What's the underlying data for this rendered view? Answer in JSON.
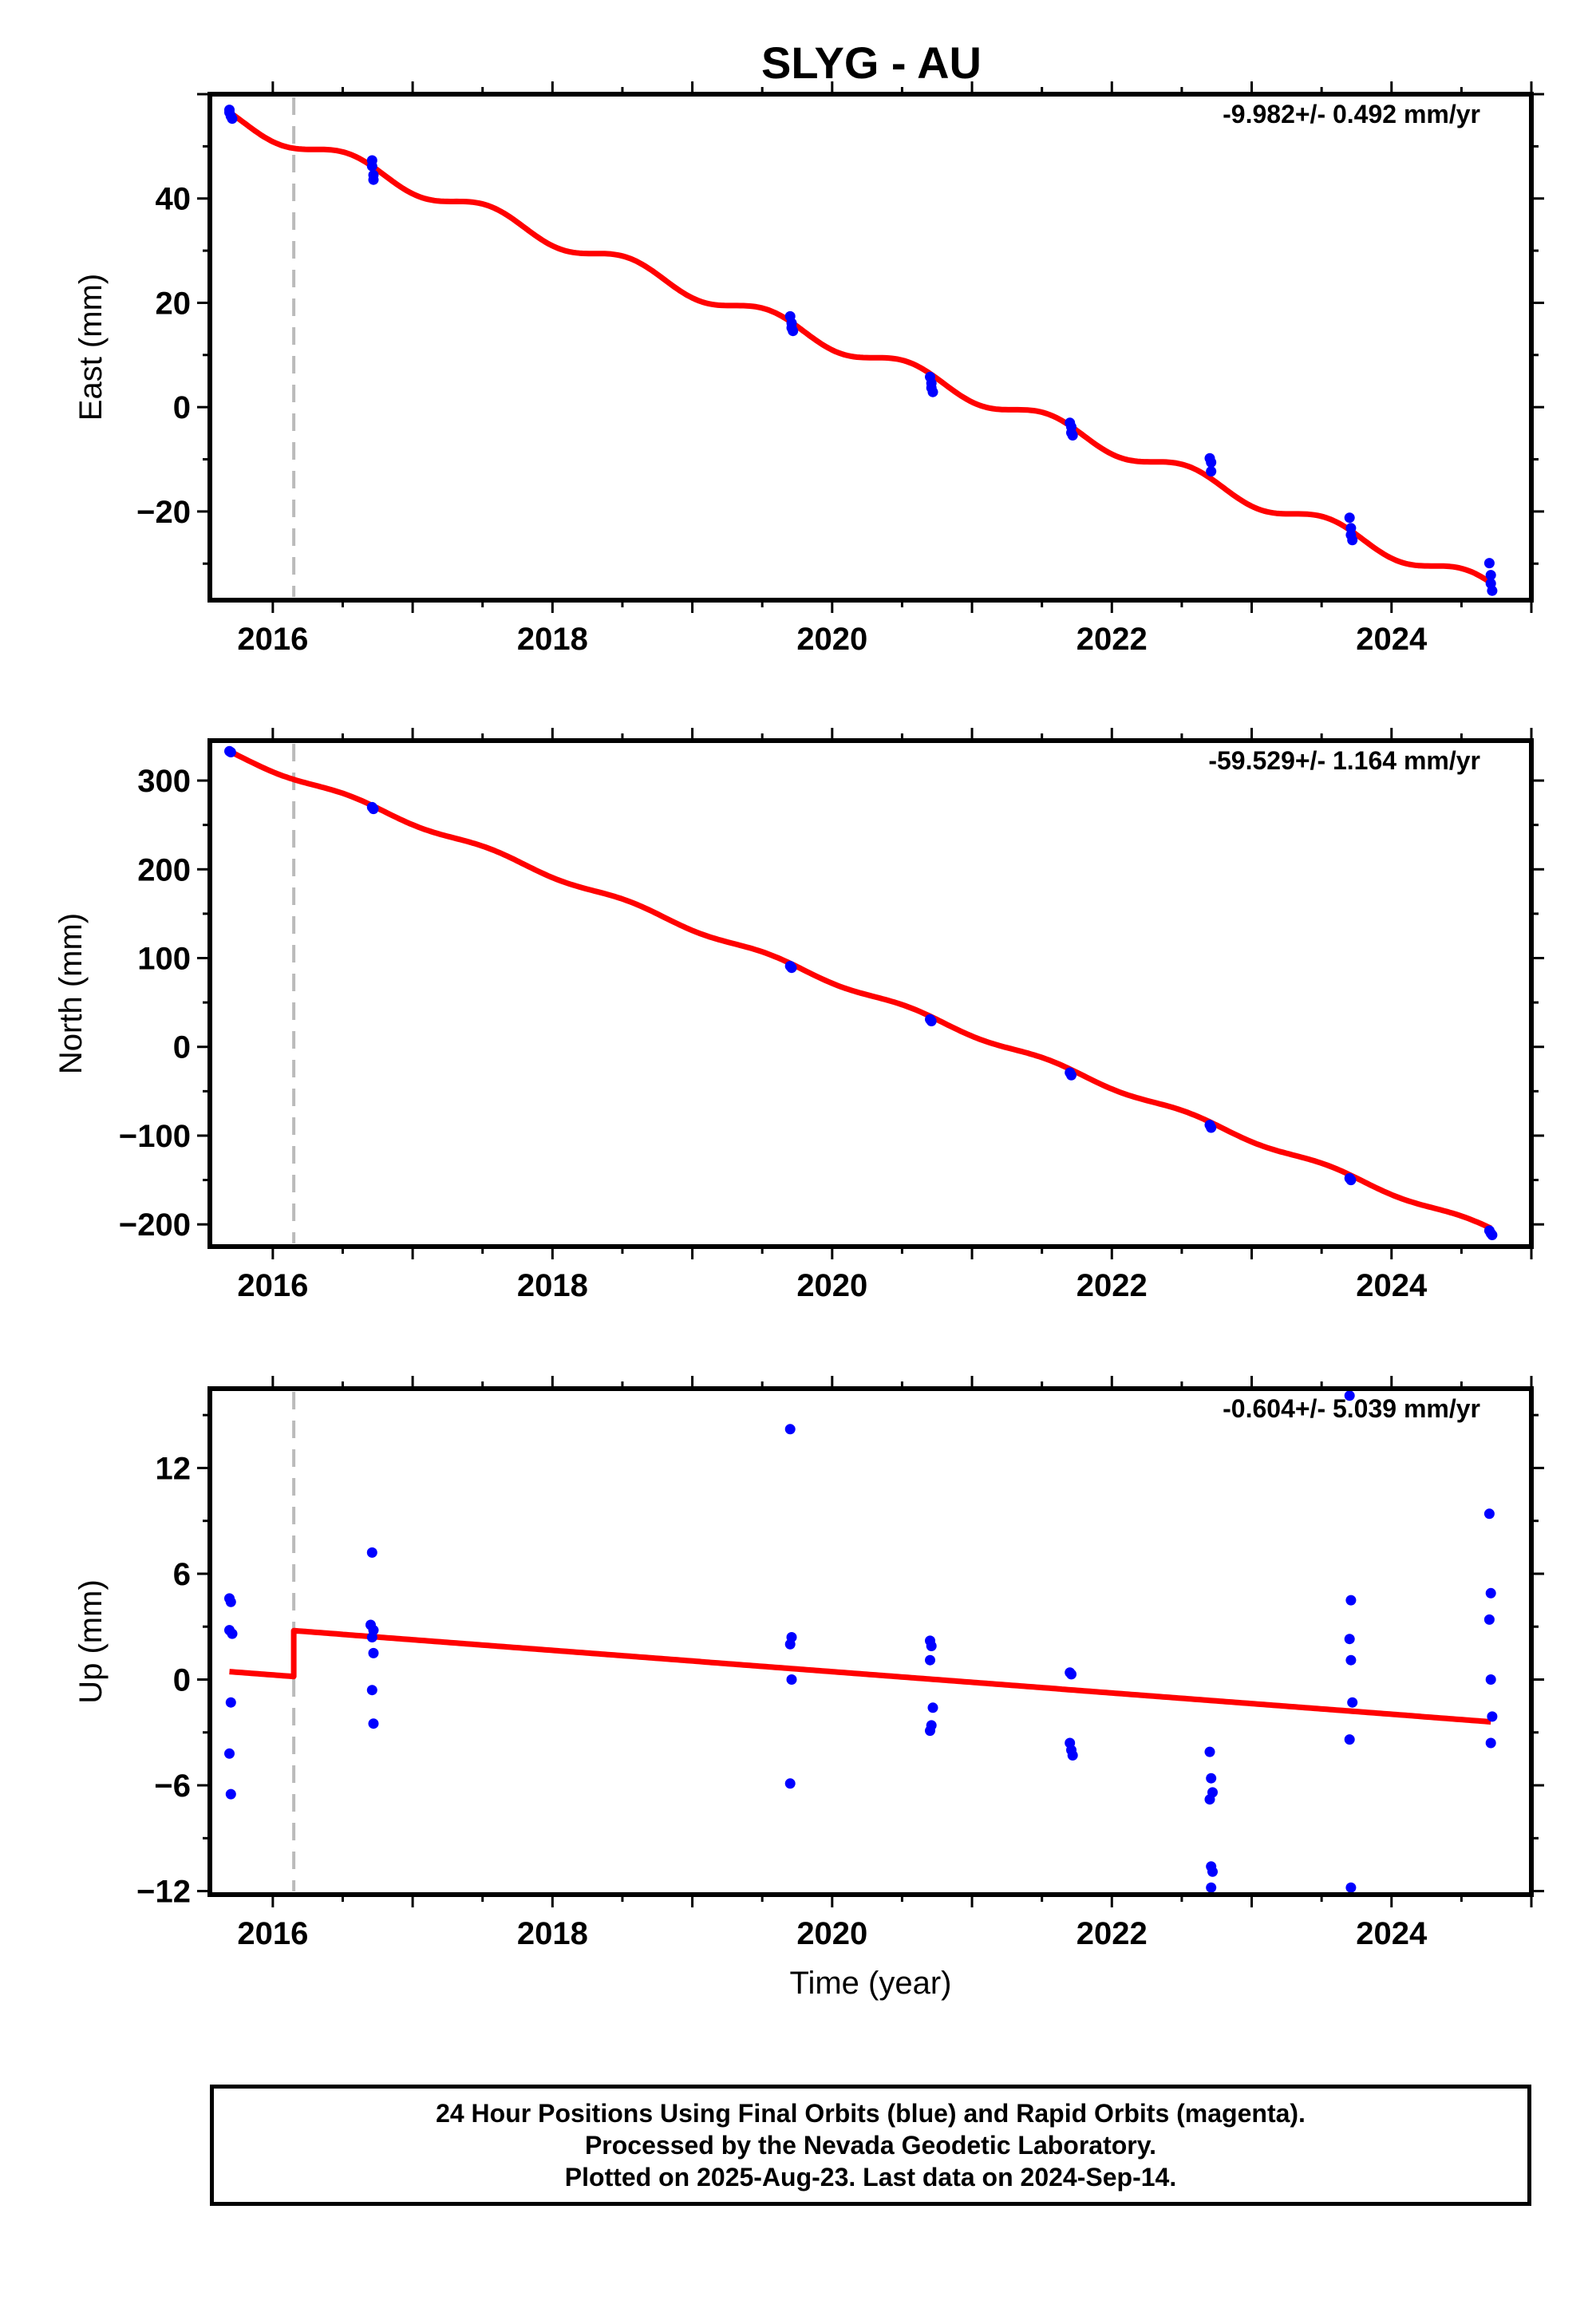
{
  "chart_data": [
    {
      "type": "scatter",
      "title": "SLYG - AU",
      "ylabel": "East (mm)",
      "xlabel": "",
      "rate_label": "-9.982+/- 0.492 mm/yr",
      "xlim": [
        2015.55,
        2025.0
      ],
      "ylim": [
        -37,
        60
      ],
      "xticks": [
        2016,
        2018,
        2020,
        2022,
        2024
      ],
      "yticks": [
        -20,
        0,
        20,
        40
      ],
      "event_line_x": 2016.15,
      "points": {
        "x": [
          2015.69,
          2015.69,
          2015.7,
          2015.71,
          2016.71,
          2016.71,
          2016.72,
          2016.72,
          2019.7,
          2019.71,
          2019.71,
          2019.72,
          2020.7,
          2020.71,
          2020.71,
          2020.72,
          2021.7,
          2021.71,
          2021.71,
          2021.72,
          2022.7,
          2022.71,
          2022.71,
          2023.7,
          2023.71,
          2023.71,
          2023.72,
          2024.7,
          2024.71,
          2024.71,
          2024.72
        ],
        "y": [
          57,
          56.5,
          55.8,
          55.3,
          47.3,
          46.2,
          44.5,
          43.6,
          17.4,
          16.1,
          15.2,
          14.6,
          5.8,
          4.6,
          3.7,
          2.9,
          -3.0,
          -3.8,
          -4.9,
          -5.4,
          -9.8,
          -10.6,
          -12.3,
          -21.2,
          -23.2,
          -24.5,
          -25.5,
          -29.9,
          -32.2,
          -33.8,
          -35.2
        ]
      },
      "model": {
        "start": 2015.69,
        "end": 2024.71,
        "intercept_at_start": 55.5,
        "rate_per_yr": -9.982,
        "annual_amplitude": 1.6,
        "annual_phase": 0.3,
        "offset_year": null,
        "offset_value": 0
      }
    },
    {
      "type": "scatter",
      "title": "",
      "ylabel": "North (mm)",
      "xlabel": "",
      "rate_label": "-59.529+/- 1.164 mm/yr",
      "xlim": [
        2015.55,
        2025.0
      ],
      "ylim": [
        -225,
        345
      ],
      "xticks": [
        2016,
        2018,
        2020,
        2022,
        2024
      ],
      "yticks": [
        -200,
        -100,
        0,
        100,
        200,
        300
      ],
      "event_line_x": 2016.15,
      "points": {
        "x": [
          2015.69,
          2015.7,
          2016.71,
          2016.72,
          2019.7,
          2019.71,
          2020.7,
          2020.71,
          2021.7,
          2021.71,
          2022.7,
          2022.71,
          2023.7,
          2023.71,
          2024.7,
          2024.71,
          2024.72
        ],
        "y": [
          333,
          332,
          270,
          268,
          91,
          89,
          31,
          29,
          -29,
          -32,
          -88,
          -91,
          -148,
          -150,
          -207,
          -210,
          -212
        ]
      },
      "model": {
        "start": 2015.69,
        "end": 2024.71,
        "intercept_at_start": 331,
        "rate_per_yr": -59.529,
        "annual_amplitude": 3,
        "annual_phase": 0.3,
        "offset_year": null,
        "offset_value": 0
      }
    },
    {
      "type": "scatter",
      "title": "",
      "ylabel": "Up (mm)",
      "xlabel": "Time (year)",
      "rate_label": "-0.604+/- 5.039 mm/yr",
      "xlim": [
        2015.55,
        2025.0
      ],
      "ylim": [
        -12.2,
        16.5
      ],
      "xticks": [
        2016,
        2018,
        2020,
        2022,
        2024
      ],
      "yticks": [
        -12,
        -6,
        0,
        6,
        12
      ],
      "event_line_x": 2016.15,
      "points": {
        "x": [
          2015.69,
          2015.7,
          2015.69,
          2015.71,
          2015.7,
          2015.69,
          2015.7,
          2016.71,
          2016.7,
          2016.72,
          2016.71,
          2016.72,
          2016.71,
          2016.72,
          2019.7,
          2019.71,
          2019.7,
          2019.71,
          2019.7,
          2020.7,
          2020.71,
          2020.7,
          2020.72,
          2020.71,
          2020.7,
          2021.7,
          2021.71,
          2021.7,
          2021.71,
          2021.72,
          2022.7,
          2022.71,
          2022.72,
          2022.7,
          2022.71,
          2022.72,
          2022.71,
          2023.7,
          2023.71,
          2023.7,
          2023.71,
          2023.72,
          2023.7,
          2023.71,
          2024.7,
          2024.71,
          2024.7,
          2024.71,
          2024.72,
          2024.71
        ],
        "y": [
          4.6,
          4.4,
          2.8,
          2.6,
          -1.3,
          -4.2,
          -6.5,
          7.2,
          3.1,
          2.8,
          2.4,
          1.5,
          -0.6,
          -2.5,
          14.2,
          2.4,
          2.0,
          0.0,
          -5.9,
          2.2,
          1.9,
          1.1,
          -1.6,
          -2.6,
          -2.9,
          0.4,
          0.3,
          -3.6,
          -4.0,
          -4.3,
          -4.1,
          -5.6,
          -6.4,
          -6.8,
          -10.6,
          -10.9,
          -11.8,
          16.1,
          4.5,
          2.3,
          1.1,
          -1.3,
          -3.4,
          -11.8,
          9.4,
          4.9,
          3.4,
          0.0,
          -2.1,
          -3.6
        ]
      },
      "model": {
        "start": 2015.69,
        "end": 2024.71,
        "intercept_at_start": 0.45,
        "rate_per_yr": -0.604,
        "annual_amplitude": 0,
        "annual_phase": 0,
        "offset_year": 2016.15,
        "offset_value": 2.6
      }
    }
  ],
  "colors": {
    "points": "#0000ff",
    "model": "#ff0000",
    "event_line": "#bbbbbb",
    "frame": "#000000"
  },
  "footer": {
    "line1": "24 Hour Positions Using Final Orbits (blue) and Rapid Orbits (magenta).",
    "line2": "Processed by the Nevada Geodetic Laboratory.",
    "line3": "Plotted on 2025-Aug-23. Last data on 2024-Sep-14."
  }
}
